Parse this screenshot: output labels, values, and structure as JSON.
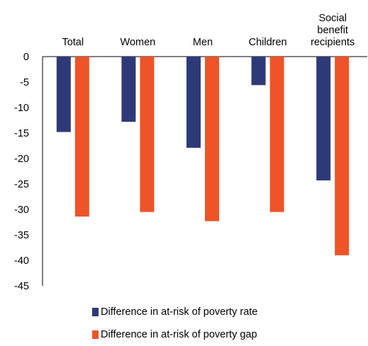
{
  "chart_data": {
    "type": "bar",
    "categories": [
      "Total",
      "Women",
      "Men",
      "Children",
      [
        "Social",
        "benefit",
        "recipients"
      ]
    ],
    "series": [
      {
        "name": "Difference in at-risk of poverty rate",
        "color": "#2e3a78",
        "values": [
          -14.8,
          -12.8,
          -17.9,
          -5.6,
          -24.3
        ]
      },
      {
        "name": "Difference in at-risk of poverty gap",
        "color": "#ee5428",
        "values": [
          -31.4,
          -30.5,
          -32.3,
          -30.5,
          -39.0
        ]
      }
    ],
    "ylim": [
      -45,
      0
    ],
    "yticks": [
      0,
      -5,
      -10,
      -15,
      -20,
      -25,
      -30,
      -35,
      -40,
      -45
    ],
    "xlabel": "",
    "ylabel": "",
    "grid": false,
    "legend_position": "bottom"
  }
}
